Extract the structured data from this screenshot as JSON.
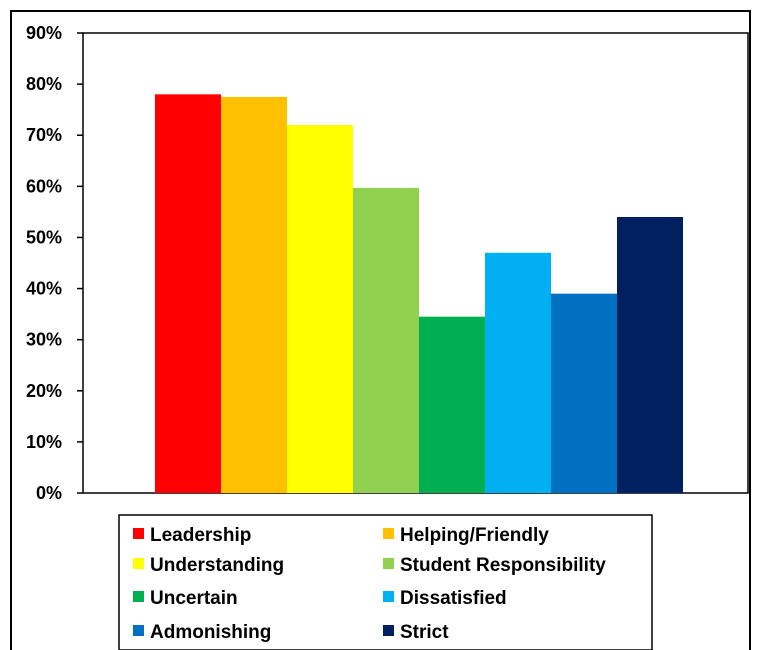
{
  "chart_data": {
    "type": "bar",
    "categories": [
      "Leadership",
      "Helping/Friendly",
      "Understanding",
      "Student Responsibility",
      "Uncertain",
      "Dissatisfied",
      "Admonishing",
      "Strict"
    ],
    "values": [
      78,
      77.5,
      72,
      59.7,
      34.5,
      47,
      39,
      54
    ],
    "colors": [
      "#ff0000",
      "#ffc000",
      "#ffff00",
      "#92d050",
      "#00b050",
      "#00b0f0",
      "#0070c0",
      "#002060"
    ],
    "yticks": [
      "0%",
      "10%",
      "20%",
      "30%",
      "40%",
      "50%",
      "60%",
      "70%",
      "80%",
      "90%"
    ],
    "ylim": [
      0,
      90
    ],
    "unit": "%",
    "title": "",
    "xlabel": "",
    "ylabel": "",
    "grid": false,
    "legend_position": "bottom"
  }
}
